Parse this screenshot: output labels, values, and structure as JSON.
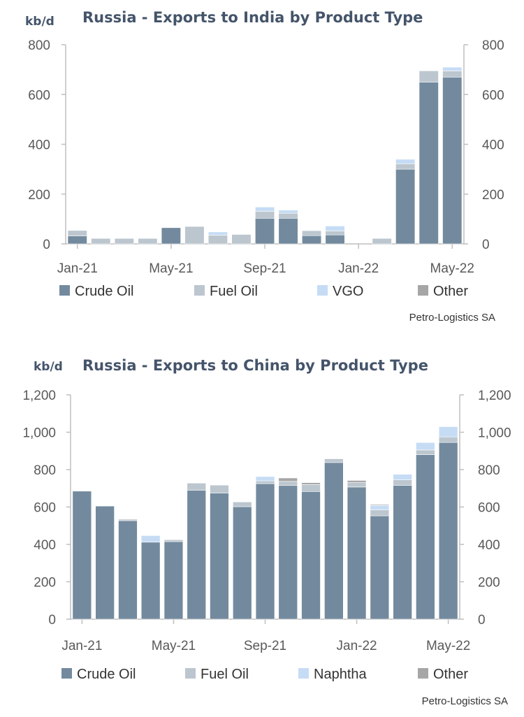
{
  "chart_data": [
    {
      "type": "bar",
      "stacked": true,
      "title": "Russia - Exports to India by Product Type",
      "ylabel": "kb/d",
      "source": "Petro-Logistics SA",
      "ylim": [
        0,
        800
      ],
      "yticks": [
        "0",
        "200",
        "400",
        "600",
        "800"
      ],
      "categories": [
        "Jan-21",
        "Feb-21",
        "Mar-21",
        "Apr-21",
        "May-21",
        "Jun-21",
        "Jul-21",
        "Aug-21",
        "Sep-21",
        "Oct-21",
        "Nov-21",
        "Dec-21",
        "Jan-22",
        "Feb-22",
        "Mar-22",
        "Apr-22",
        "May-22"
      ],
      "xtick_labels": [
        "Jan-21",
        "May-21",
        "Sep-21",
        "Jan-22",
        "May-22"
      ],
      "series": [
        {
          "name": "Crude Oil",
          "color": "#738a9e",
          "values": [
            32,
            0,
            0,
            0,
            65,
            0,
            0,
            0,
            103,
            103,
            33,
            36,
            0,
            0,
            300,
            650,
            670
          ]
        },
        {
          "name": "Fuel Oil",
          "color": "#bcc6cf",
          "values": [
            22,
            22,
            22,
            22,
            0,
            70,
            35,
            38,
            28,
            20,
            20,
            16,
            0,
            22,
            22,
            45,
            25
          ]
        },
        {
          "name": "VGO",
          "color": "#c6dcf5",
          "values": [
            0,
            0,
            0,
            0,
            0,
            0,
            13,
            0,
            17,
            13,
            0,
            20,
            0,
            0,
            18,
            0,
            15
          ]
        },
        {
          "name": "Other",
          "color": "#a6a6a6",
          "values": [
            0,
            0,
            0,
            0,
            0,
            0,
            0,
            0,
            0,
            0,
            0,
            0,
            0,
            0,
            0,
            0,
            0
          ]
        }
      ],
      "legend": "bottom"
    },
    {
      "type": "bar",
      "stacked": true,
      "title": "Russia - Exports to China by Product Type",
      "ylabel": "kb/d",
      "source": "Petro-Logistics SA",
      "ylim": [
        0,
        1200
      ],
      "yticks": [
        "0",
        "200",
        "400",
        "600",
        "800",
        "1,000",
        "1,200"
      ],
      "categories": [
        "Jan-21",
        "Feb-21",
        "Mar-21",
        "Apr-21",
        "May-21",
        "Jun-21",
        "Jul-21",
        "Aug-21",
        "Sep-21",
        "Oct-21",
        "Nov-21",
        "Dec-21",
        "Jan-22",
        "Feb-22",
        "Mar-22",
        "Apr-22",
        "May-22"
      ],
      "xtick_labels": [
        "Jan-21",
        "May-21",
        "Sep-21",
        "Jan-22",
        "May-22"
      ],
      "series": [
        {
          "name": "Crude Oil",
          "color": "#738a9e",
          "values": [
            685,
            605,
            527,
            412,
            415,
            690,
            675,
            602,
            725,
            715,
            683,
            838,
            707,
            553,
            715,
            880,
            945
          ]
        },
        {
          "name": "Fuel Oil",
          "color": "#bcc6cf",
          "values": [
            0,
            0,
            8,
            0,
            10,
            38,
            42,
            25,
            15,
            22,
            37,
            20,
            25,
            32,
            30,
            25,
            30
          ]
        },
        {
          "name": "Naphtha",
          "color": "#c6dcf5",
          "values": [
            0,
            0,
            0,
            35,
            0,
            0,
            0,
            0,
            23,
            0,
            0,
            0,
            0,
            23,
            30,
            40,
            55
          ]
        },
        {
          "name": "Other",
          "color": "#a6a6a6",
          "values": [
            0,
            0,
            0,
            0,
            0,
            0,
            0,
            0,
            0,
            18,
            10,
            0,
            10,
            5,
            0,
            0,
            0
          ]
        }
      ],
      "legend": "bottom"
    }
  ]
}
